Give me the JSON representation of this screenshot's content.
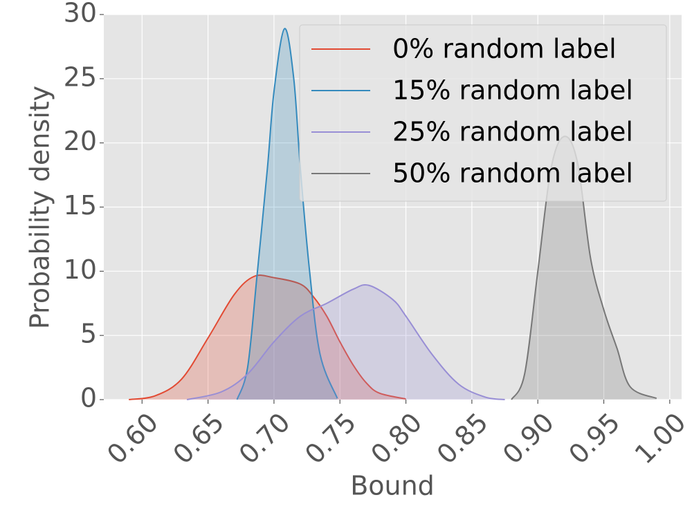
{
  "chart_data": {
    "type": "line",
    "xlabel": "Bound",
    "ylabel": "Probability density",
    "xlim": [
      0.571,
      1.009
    ],
    "ylim": [
      0,
      30
    ],
    "xticks": [
      {
        "value": 0.6,
        "label": "0.60"
      },
      {
        "value": 0.65,
        "label": "0.65"
      },
      {
        "value": 0.7,
        "label": "0.70"
      },
      {
        "value": 0.75,
        "label": "0.75"
      },
      {
        "value": 0.8,
        "label": "0.80"
      },
      {
        "value": 0.85,
        "label": "0.85"
      },
      {
        "value": 0.9,
        "label": "0.90"
      },
      {
        "value": 0.95,
        "label": "0.95"
      },
      {
        "value": 1.0,
        "label": "1.00"
      }
    ],
    "yticks": [
      0,
      5,
      10,
      15,
      20,
      25,
      30
    ],
    "grid": true,
    "legend": "upper right",
    "fill": true,
    "series": [
      {
        "name": "0% random label",
        "color": "#E24A33",
        "x": [
          0.59,
          0.61,
          0.63,
          0.65,
          0.67,
          0.685,
          0.7,
          0.72,
          0.73,
          0.74,
          0.75,
          0.76,
          0.77,
          0.78,
          0.8
        ],
        "values": [
          0,
          0.3,
          1.6,
          4.8,
          8.2,
          9.6,
          9.5,
          9.0,
          8.0,
          6.5,
          4.5,
          2.7,
          1.3,
          0.5,
          0.05
        ]
      },
      {
        "name": "15% random label",
        "color": "#348ABD",
        "x": [
          0.672,
          0.68,
          0.687,
          0.695,
          0.7,
          0.708,
          0.715,
          0.72,
          0.727,
          0.735,
          0.748
        ],
        "values": [
          0,
          2.5,
          9.5,
          18,
          24,
          28.9,
          25,
          18,
          10,
          3.5,
          0.1
        ]
      },
      {
        "name": "25% random label",
        "color": "#988ED5",
        "x": [
          0.634,
          0.66,
          0.68,
          0.7,
          0.72,
          0.74,
          0.76,
          0.772,
          0.79,
          0.8,
          0.82,
          0.84,
          0.86,
          0.875
        ],
        "values": [
          0,
          0.6,
          2.0,
          4.5,
          6.5,
          7.5,
          8.6,
          8.9,
          7.8,
          6.5,
          3.5,
          1.2,
          0.2,
          0
        ]
      },
      {
        "name": "50% random label",
        "color": "#777777",
        "x": [
          0.88,
          0.89,
          0.9,
          0.91,
          0.92,
          0.93,
          0.94,
          0.95,
          0.96,
          0.97,
          0.99
        ],
        "values": [
          0,
          2,
          10,
          18,
          20.5,
          18.5,
          11,
          7,
          4,
          1,
          0.1
        ]
      }
    ]
  }
}
